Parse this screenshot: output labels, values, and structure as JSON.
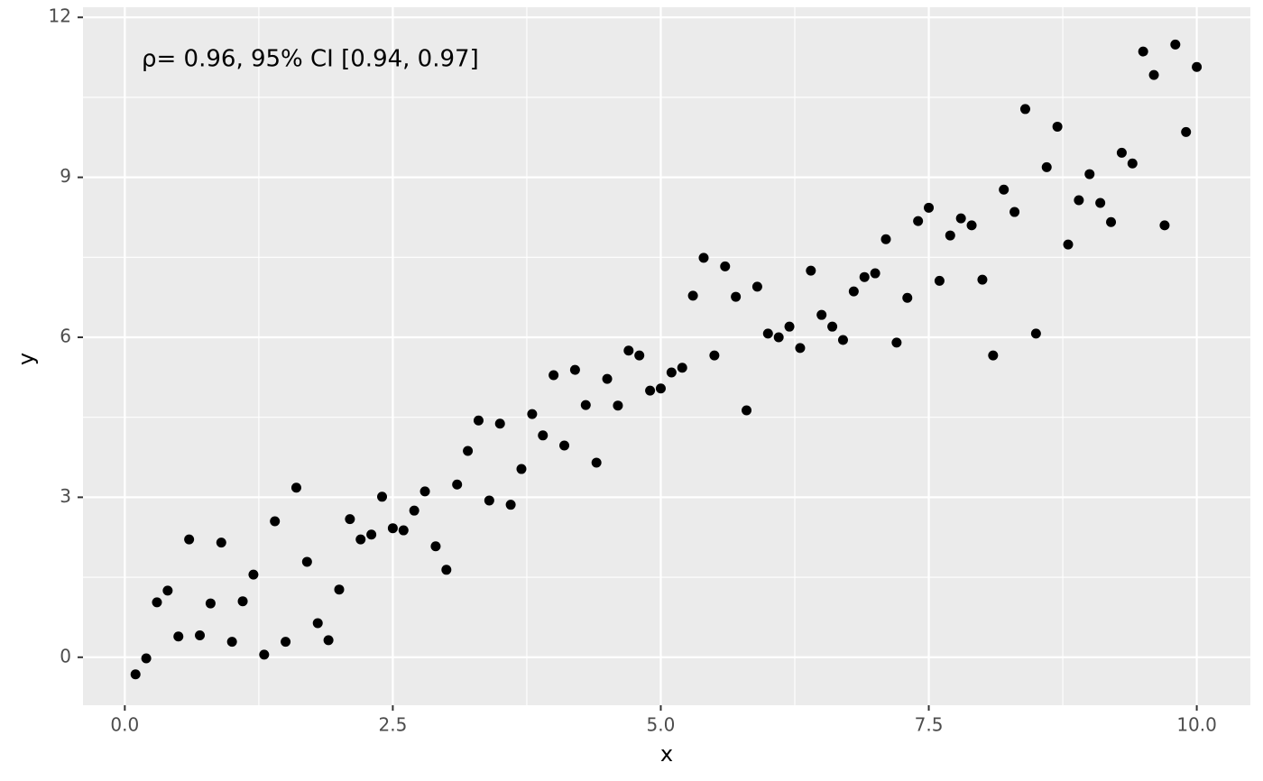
{
  "chart_data": {
    "type": "scatter",
    "annotation": "ρ= 0.96, 95% CI [0.94, 0.97]",
    "x_label": "x",
    "y_label": "y",
    "point_color": "#000000",
    "grid": true,
    "xlim": [
      -0.39,
      10.5
    ],
    "ylim": [
      -0.9,
      12.19
    ],
    "xticks": [
      {
        "value": 0,
        "label": "0.0"
      },
      2.5,
      {
        "value": 5,
        "label": "5.0"
      },
      7.5,
      {
        "value": 10,
        "label": "10.0"
      }
    ],
    "yticks": [
      0,
      3,
      6,
      9,
      12
    ],
    "x": [
      0.1,
      0.2,
      0.3,
      0.4,
      0.5,
      0.6,
      0.7,
      0.8,
      0.9,
      1.0,
      1.1,
      1.2,
      1.3,
      1.4,
      1.5,
      1.6,
      1.7,
      1.8,
      1.9,
      2.0,
      2.1,
      2.2,
      2.3,
      2.4,
      2.5,
      2.6,
      2.7,
      2.8,
      2.9,
      3.0,
      3.1,
      3.2,
      3.3,
      3.4,
      3.5,
      3.6,
      3.7,
      3.8,
      3.9,
      4.0,
      4.1,
      4.2,
      4.3,
      4.4,
      4.5,
      4.6,
      4.7,
      4.8,
      4.9,
      5.0,
      5.1,
      5.2,
      5.3,
      5.4,
      5.5,
      5.6,
      5.7,
      5.8,
      5.9,
      6.0,
      6.1,
      6.2,
      6.3,
      6.4,
      6.5,
      6.6,
      6.7,
      6.8,
      6.9,
      7.0,
      7.1,
      7.2,
      7.3,
      7.4,
      7.5,
      7.6,
      7.7,
      7.8,
      7.9,
      8.0,
      8.1,
      8.2,
      8.3,
      8.4,
      8.5,
      8.6,
      8.7,
      8.8,
      8.9,
      9.0,
      9.1,
      9.2,
      9.3,
      9.4,
      9.5,
      9.6,
      9.7,
      9.8,
      9.9,
      10.0
    ],
    "y": [
      -0.32,
      -0.02,
      1.03,
      1.25,
      0.39,
      2.21,
      0.41,
      1.01,
      2.15,
      0.29,
      1.05,
      1.55,
      0.05,
      2.55,
      0.29,
      3.18,
      1.79,
      0.64,
      0.32,
      1.27,
      2.59,
      2.21,
      2.3,
      3.01,
      2.42,
      2.38,
      2.75,
      3.11,
      2.08,
      1.64,
      3.24,
      3.87,
      4.44,
      2.94,
      4.38,
      2.86,
      3.53,
      4.56,
      4.16,
      5.29,
      3.97,
      5.39,
      4.73,
      3.65,
      5.22,
      4.72,
      5.75,
      5.66,
      5.0,
      5.04,
      5.34,
      5.43,
      6.78,
      7.49,
      5.66,
      7.33,
      6.76,
      4.63,
      6.95,
      6.07,
      6.0,
      6.2,
      5.8,
      7.25,
      6.42,
      6.2,
      5.95,
      6.86,
      7.13,
      7.2,
      7.84,
      5.9,
      6.74,
      8.18,
      8.43,
      7.06,
      7.91,
      8.23,
      8.1,
      7.08,
      5.66,
      8.77,
      8.35,
      10.28,
      6.07,
      9.19,
      9.95,
      7.74,
      8.57,
      9.06,
      8.52,
      8.16,
      9.46,
      9.26,
      11.36,
      10.92,
      8.1,
      11.49,
      9.85,
      11.07
    ]
  }
}
